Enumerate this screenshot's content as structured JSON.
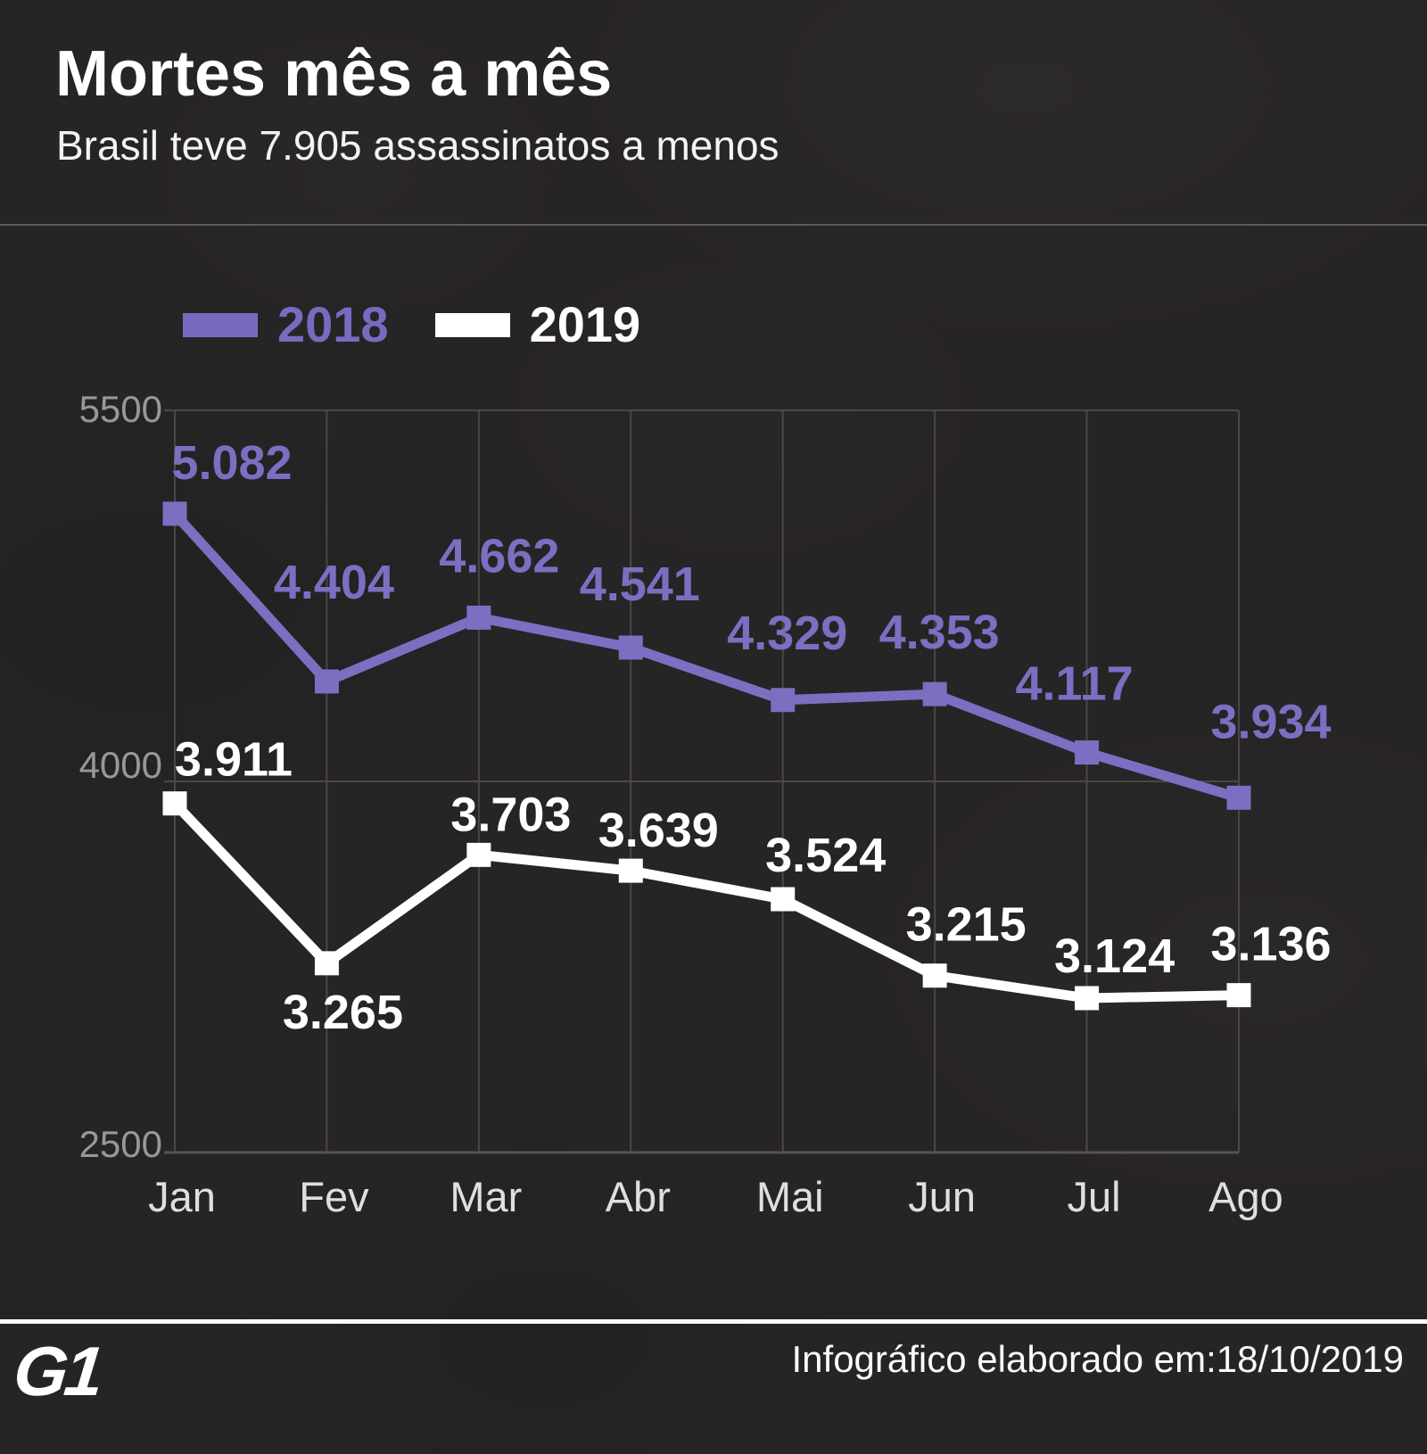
{
  "header": {
    "title": "Mortes mês a mês",
    "subtitle": "Brasil teve 7.905 assassinatos a menos"
  },
  "legend": {
    "items": [
      {
        "label": "2018",
        "color": "#776bbf"
      },
      {
        "label": "2019",
        "color": "#ffffff"
      }
    ]
  },
  "chart_data": {
    "type": "line",
    "title": "Mortes mês a mês",
    "categories": [
      "Jan",
      "Fev",
      "Mar",
      "Abr",
      "Mai",
      "Jun",
      "Jul",
      "Ago"
    ],
    "series": [
      {
        "name": "2018",
        "color": "#7b6fc2",
        "values": [
          5082,
          4404,
          4662,
          4541,
          4329,
          4353,
          4117,
          3934
        ],
        "labels": [
          "5.082",
          "4.404",
          "4.662",
          "4.541",
          "4.329",
          "4.353",
          "4.117",
          "3.934"
        ]
      },
      {
        "name": "2019",
        "color": "#ffffff",
        "values": [
          3911,
          3265,
          3703,
          3639,
          3524,
          3215,
          3124,
          3136
        ],
        "labels": [
          "3.911",
          "3.265",
          "3.703",
          "3.639",
          "3.524",
          "3.215",
          "3.124",
          "3.136"
        ]
      }
    ],
    "ylim": [
      2500,
      5500
    ],
    "yticks": [
      5500,
      4000,
      2500
    ],
    "ytick_labels": [
      "5500",
      "4000",
      "2500"
    ],
    "grid": true,
    "legend_position": "top"
  },
  "footer": {
    "logo": "G1",
    "credit": "Infográfico elaborado em:18/10/2019"
  },
  "colors": {
    "background": "#272425",
    "grid": "#4a4745",
    "tick_label": "#9a9896",
    "month_label": "#e0dfde",
    "header_divider": "#5c5b5a",
    "footer_divider": "#ffffff"
  }
}
